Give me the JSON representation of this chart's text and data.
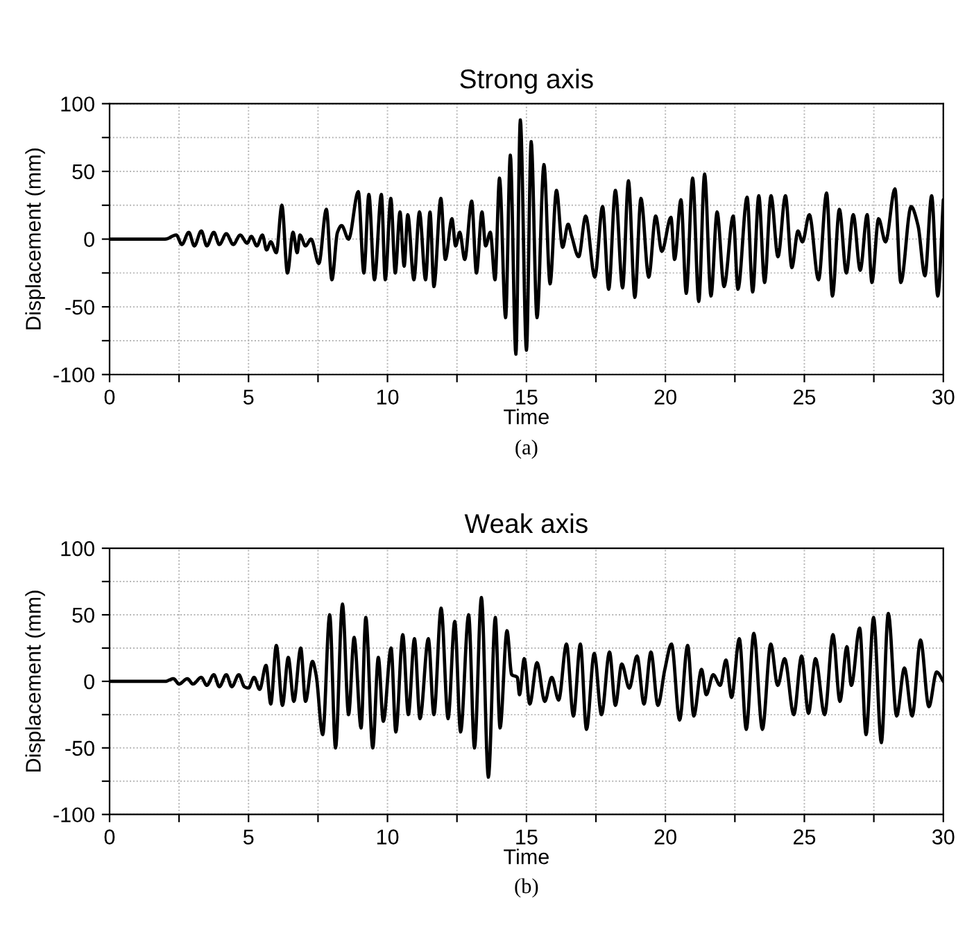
{
  "chart_data": [
    {
      "type": "line",
      "title": "Strong axis",
      "xlabel": "Time",
      "ylabel": "Displacement (mm)",
      "annotations": [
        "(a)"
      ],
      "xlim": [
        0,
        30
      ],
      "ylim": [
        -100,
        100
      ],
      "xticks": [
        0,
        {
          "value": 2.5,
          "label": null
        },
        5,
        {
          "value": 7.5,
          "label": null
        },
        10,
        {
          "value": 12.5,
          "label": null
        },
        15,
        {
          "value": 17.5,
          "label": null
        },
        20,
        {
          "value": 22.5,
          "label": null
        },
        25,
        {
          "value": 27.5,
          "label": null
        },
        30
      ],
      "yticks": [
        -100,
        {
          "value": -75,
          "label": null
        },
        -50,
        {
          "value": -25,
          "label": null
        },
        0,
        {
          "value": 25,
          "label": null
        },
        50,
        {
          "value": 75,
          "label": null
        },
        100
      ],
      "grid": true,
      "marker": "none",
      "line_style": "solid",
      "series": [
        {
          "color": "#000000",
          "x": [
            0,
            2.0,
            2.4,
            2.6,
            2.85,
            3.05,
            3.3,
            3.5,
            3.75,
            3.95,
            4.2,
            4.45,
            4.7,
            4.95,
            5.1,
            5.3,
            5.5,
            5.65,
            5.8,
            6.0,
            6.2,
            6.4,
            6.6,
            6.75,
            6.85,
            7.05,
            7.25,
            7.53,
            7.8,
            8.0,
            8.2,
            8.35,
            8.6,
            8.95,
            9.15,
            9.33,
            9.53,
            9.78,
            9.92,
            10.12,
            10.28,
            10.45,
            10.6,
            10.73,
            10.95,
            11.15,
            11.37,
            11.53,
            11.67,
            11.92,
            12.08,
            12.32,
            12.45,
            12.6,
            12.78,
            13.03,
            13.2,
            13.4,
            13.53,
            13.7,
            13.87,
            14.03,
            14.25,
            14.42,
            14.62,
            14.78,
            15.0,
            15.17,
            15.38,
            15.63,
            15.85,
            16.08,
            16.3,
            16.5,
            16.63,
            16.88,
            17.13,
            17.46,
            17.74,
            17.96,
            18.2,
            18.46,
            18.67,
            18.9,
            19.12,
            19.4,
            19.65,
            19.87,
            20.2,
            20.33,
            20.56,
            20.75,
            20.98,
            21.2,
            21.41,
            21.64,
            21.86,
            22.11,
            22.44,
            22.61,
            22.94,
            23.14,
            23.36,
            23.57,
            23.8,
            24.05,
            24.32,
            24.55,
            24.77,
            24.93,
            25.18,
            25.51,
            25.8,
            26.01,
            26.26,
            26.51,
            26.76,
            27.01,
            27.26,
            27.43,
            27.67,
            27.92,
            28.26,
            28.47,
            28.84,
            29.09,
            29.34,
            29.58,
            29.8,
            30
          ],
          "values": [
            0,
            0,
            3,
            -4,
            5,
            -5,
            6,
            -5,
            5,
            -4,
            4,
            -4,
            3,
            -3,
            2,
            -5,
            3,
            -8,
            -2,
            -10,
            25,
            -25,
            5,
            -10,
            3,
            -5,
            0,
            -18,
            22,
            -30,
            5,
            10,
            0,
            35,
            -25,
            33,
            -30,
            33,
            -30,
            30,
            -25,
            20,
            -20,
            18,
            -30,
            20,
            -30,
            20,
            -35,
            30,
            -15,
            15,
            -5,
            5,
            -15,
            28,
            -25,
            20,
            -5,
            5,
            -30,
            45,
            -58,
            62,
            -85,
            88,
            -82,
            72,
            -58,
            55,
            -33,
            36,
            -6,
            11,
            2,
            -13,
            17,
            -28,
            24,
            -37,
            36,
            -36,
            43,
            -43,
            30,
            -28,
            17,
            -9,
            16,
            -15,
            29,
            -40,
            45,
            -46,
            48,
            -42,
            20,
            -35,
            17,
            -37,
            31,
            -39,
            32,
            -32,
            32,
            -13,
            32,
            -21,
            6,
            -2,
            18,
            -30,
            34,
            -42,
            22,
            -25,
            18,
            -23,
            18,
            -32,
            15,
            -2,
            37,
            -32,
            24,
            10,
            -27,
            32,
            -42,
            29
          ]
        }
      ]
    },
    {
      "type": "line",
      "title": "Weak axis",
      "xlabel": "Time",
      "ylabel": "Displacement (mm)",
      "annotations": [
        "(b)"
      ],
      "xlim": [
        0,
        30
      ],
      "ylim": [
        -100,
        100
      ],
      "xticks": [
        0,
        {
          "value": 2.5,
          "label": null
        },
        5,
        {
          "value": 7.5,
          "label": null
        },
        10,
        {
          "value": 12.5,
          "label": null
        },
        15,
        {
          "value": 17.5,
          "label": null
        },
        20,
        {
          "value": 22.5,
          "label": null
        },
        25,
        {
          "value": 27.5,
          "label": null
        },
        30
      ],
      "yticks": [
        -100,
        {
          "value": -75,
          "label": null
        },
        -50,
        {
          "value": -25,
          "label": null
        },
        0,
        {
          "value": 25,
          "label": null
        },
        50,
        {
          "value": 75,
          "label": null
        },
        100
      ],
      "grid": true,
      "marker": "none",
      "line_style": "solid",
      "series": [
        {
          "color": "#000000",
          "x": [
            0,
            2.0,
            2.3,
            2.5,
            2.8,
            3.0,
            3.3,
            3.5,
            3.75,
            3.95,
            4.2,
            4.4,
            4.65,
            4.85,
            5.0,
            5.2,
            5.4,
            5.63,
            5.8,
            6.0,
            6.22,
            6.43,
            6.63,
            6.88,
            7.05,
            7.3,
            7.43,
            7.67,
            7.92,
            8.13,
            8.38,
            8.6,
            8.8,
            9.05,
            9.22,
            9.47,
            9.67,
            9.85,
            10.13,
            10.3,
            10.55,
            10.75,
            10.97,
            11.17,
            11.47,
            11.67,
            11.93,
            12.18,
            12.42,
            12.63,
            12.92,
            13.13,
            13.38,
            13.63,
            13.88,
            14.05,
            14.3,
            14.47,
            14.67,
            14.75,
            14.92,
            15.12,
            15.38,
            15.66,
            15.91,
            16.16,
            16.44,
            16.69,
            16.94,
            17.16,
            17.44,
            17.7,
            17.99,
            18.2,
            18.43,
            18.7,
            18.98,
            19.23,
            19.48,
            19.73,
            19.98,
            20.22,
            20.51,
            20.8,
            21.02,
            21.3,
            21.47,
            21.72,
            21.97,
            22.18,
            22.38,
            22.66,
            22.91,
            23.18,
            23.49,
            23.79,
            24.04,
            24.29,
            24.62,
            24.9,
            25.15,
            25.4,
            25.73,
            26.03,
            26.28,
            26.53,
            26.69,
            26.99,
            27.22,
            27.49,
            27.77,
            28.02,
            28.32,
            28.6,
            28.88,
            29.18,
            29.48,
            29.76,
            30
          ],
          "values": [
            0,
            0,
            2,
            -2,
            2,
            -2,
            3,
            -3,
            5,
            -4,
            5,
            -4,
            5,
            -4,
            -5,
            3,
            -6,
            12,
            -17,
            27,
            -18,
            18,
            -15,
            25,
            -15,
            15,
            5,
            -40,
            50,
            -50,
            58,
            -25,
            33,
            -35,
            48,
            -50,
            18,
            -30,
            25,
            -38,
            35,
            -25,
            32,
            -28,
            32,
            -25,
            55,
            -28,
            45,
            -38,
            50,
            -50,
            63,
            -72,
            48,
            -35,
            38,
            5,
            3,
            -10,
            17,
            -17,
            14,
            -15,
            3,
            -14,
            28,
            -26,
            28,
            -36,
            21,
            -25,
            22,
            -18,
            13,
            -5,
            19,
            -17,
            22,
            -18,
            9,
            28,
            -29,
            27,
            -26,
            9,
            -10,
            5,
            -3,
            16,
            -12,
            32,
            -36,
            36,
            -36,
            28,
            -3,
            17,
            -25,
            19,
            -24,
            17,
            -25,
            35,
            -15,
            26,
            -3,
            40,
            -40,
            48,
            -46,
            51,
            -26,
            10,
            -26,
            31,
            -19,
            7,
            0
          ]
        }
      ]
    }
  ]
}
